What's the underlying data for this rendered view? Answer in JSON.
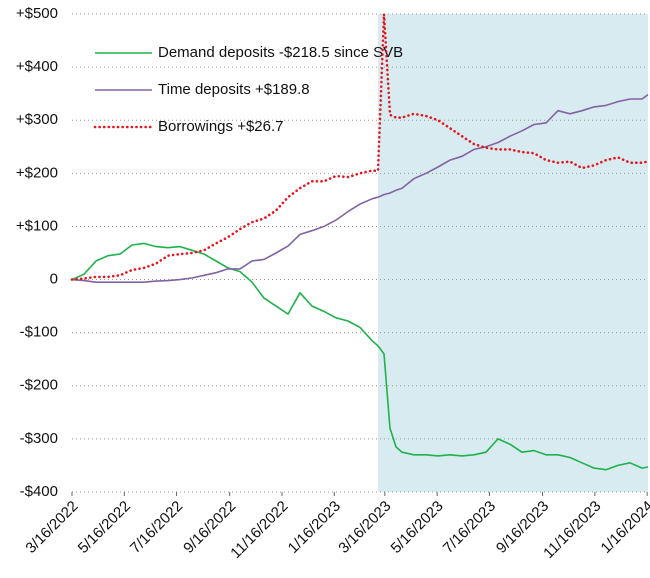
{
  "chart_data": {
    "type": "line",
    "x": [
      "3/16/2022",
      "3/30/2022",
      "4/13/2022",
      "4/27/2022",
      "5/11/2022",
      "5/25/2022",
      "6/8/2022",
      "6/22/2022",
      "7/6/2022",
      "7/20/2022",
      "8/3/2022",
      "8/17/2022",
      "8/31/2022",
      "9/14/2022",
      "9/28/2022",
      "10/12/2022",
      "10/26/2022",
      "11/9/2022",
      "11/23/2022",
      "12/7/2022",
      "12/21/2022",
      "1/4/2023",
      "1/18/2023",
      "2/1/2023",
      "2/15/2023",
      "3/1/2023",
      "3/8/2023",
      "3/15/2023",
      "3/22/2023",
      "3/29/2023",
      "4/5/2023",
      "4/19/2023",
      "5/3/2023",
      "5/17/2023",
      "5/31/2023",
      "6/14/2023",
      "6/28/2023",
      "7/12/2023",
      "7/26/2023",
      "8/9/2023",
      "8/23/2023",
      "9/6/2023",
      "9/20/2023",
      "10/4/2023",
      "10/18/2023",
      "11/1/2023",
      "11/15/2023",
      "11/29/2023",
      "12/13/2023",
      "12/27/2023",
      "1/10/2024",
      "1/17/2024"
    ],
    "series": [
      {
        "name": "Demand deposits -$218.5 since SVB",
        "color": "#1fb24a",
        "dash": "solid",
        "values": [
          0,
          10,
          35,
          45,
          48,
          65,
          68,
          62,
          60,
          62,
          55,
          48,
          35,
          22,
          15,
          -5,
          -35,
          -50,
          -65,
          -25,
          -50,
          -60,
          -72,
          -78,
          -90,
          -115,
          -125,
          -140,
          -280,
          -315,
          -325,
          -330,
          -330,
          -332,
          -330,
          -332,
          -330,
          -325,
          -300,
          -310,
          -325,
          -322,
          -330,
          -330,
          -335,
          -345,
          -355,
          -358,
          -350,
          -345,
          -355,
          -353
        ]
      },
      {
        "name": "Time deposits +$189.8",
        "color": "#8064a2",
        "dash": "solid",
        "values": [
          0,
          -2,
          -5,
          -5,
          -5,
          -5,
          -5,
          -3,
          -2,
          0,
          3,
          8,
          13,
          20,
          20,
          35,
          38,
          50,
          63,
          85,
          92,
          100,
          112,
          128,
          142,
          152,
          155,
          160,
          163,
          168,
          172,
          190,
          200,
          212,
          225,
          232,
          245,
          250,
          258,
          270,
          280,
          292,
          295,
          318,
          312,
          318,
          325,
          328,
          335,
          340,
          340,
          348
        ]
      },
      {
        "name": "Borrowings +$26.7",
        "color": "#e8141c",
        "dash": "dotted",
        "values": [
          0,
          2,
          5,
          5,
          8,
          18,
          22,
          30,
          45,
          48,
          50,
          55,
          68,
          80,
          95,
          108,
          115,
          130,
          155,
          172,
          185,
          185,
          195,
          193,
          200,
          205,
          205,
          500,
          310,
          305,
          305,
          312,
          308,
          300,
          285,
          270,
          255,
          248,
          245,
          245,
          240,
          238,
          225,
          220,
          222,
          210,
          215,
          225,
          230,
          220,
          220,
          222
        ]
      }
    ],
    "xlim": [
      "3/16/2022",
      "1/17/2024"
    ],
    "xticks": [
      "3/16/2022",
      "5/16/2022",
      "7/16/2022",
      "9/16/2022",
      "11/16/2022",
      "1/16/2023",
      "3/16/2023",
      "5/16/2023",
      "7/16/2023",
      "9/16/2023",
      "11/16/2023",
      "1/16/2024"
    ],
    "ylim": [
      -400,
      500
    ],
    "yticks": [
      {
        "value": 500,
        "label": "+$500"
      },
      {
        "value": 400,
        "label": "+$400"
      },
      {
        "value": 300,
        "label": "+$300"
      },
      {
        "value": 200,
        "label": "+$200"
      },
      {
        "value": 100,
        "label": "+$100"
      },
      0,
      {
        "value": -100,
        "label": "-$100"
      },
      {
        "value": -200,
        "label": "-$200"
      },
      {
        "value": -300,
        "label": "-$300"
      },
      {
        "value": -400,
        "label": "-$400"
      }
    ],
    "shade_from": "3/8/2023",
    "shade_color": "#d8ebf1",
    "grid": true,
    "legend": "upper left"
  }
}
